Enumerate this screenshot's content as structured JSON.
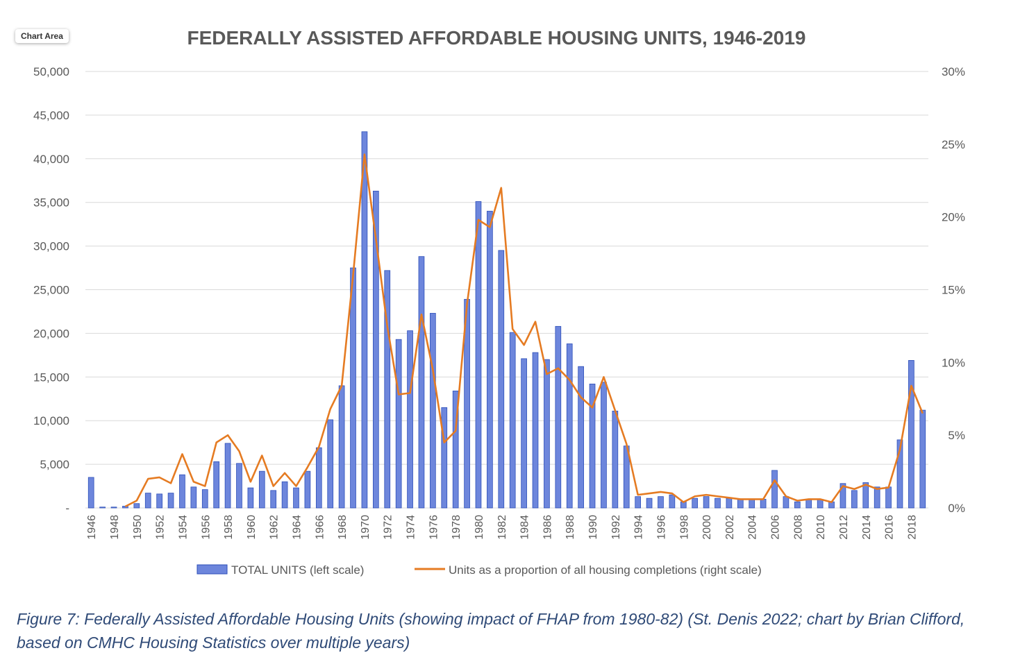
{
  "chart_area_label": "Chart Area",
  "caption": "Figure 7: Federally Assisted Affordable Housing Units (showing impact of FHAP from 1980-82) (St. Denis 2022; chart by Brian Clifford, based on CMHC Housing Statistics over multiple years)",
  "colors": {
    "bar_fill": "#6d86dc",
    "bar_stroke": "#2d4fb8",
    "line": "#e57b22",
    "grid": "#d9d9d9",
    "text": "#595959",
    "title": "#595959"
  },
  "chart_data": {
    "type": "bar",
    "title": "FEDERALLY ASSISTED AFFORDABLE HOUSING UNITS, 1946-2019",
    "xlabel": "",
    "ylabel": "",
    "ylim": [
      0,
      50000
    ],
    "y2lim": [
      0,
      30
    ],
    "grid": true,
    "legend_position": "bottom",
    "left_tick_labels": [
      "-",
      "5,000",
      "10,000",
      "15,000",
      "20,000",
      "25,000",
      "30,000",
      "35,000",
      "40,000",
      "45,000",
      "50,000"
    ],
    "right_tick_labels": [
      "0%",
      "5%",
      "10%",
      "15%",
      "20%",
      "25%",
      "30%"
    ],
    "x_tick_labels": [
      "1946",
      "1948",
      "1950",
      "1952",
      "1954",
      "1956",
      "1958",
      "1960",
      "1962",
      "1964",
      "1966",
      "1968",
      "1970",
      "1972",
      "1974",
      "1976",
      "1978",
      "1980",
      "1982",
      "1984",
      "1986",
      "1988",
      "1990",
      "1992",
      "1994",
      "1996",
      "1998",
      "2000",
      "2002",
      "2004",
      "2006",
      "2008",
      "2010",
      "2012",
      "2014",
      "2016",
      "2018"
    ],
    "categories": [
      1946,
      1947,
      1948,
      1949,
      1950,
      1951,
      1952,
      1953,
      1954,
      1955,
      1956,
      1957,
      1958,
      1959,
      1960,
      1961,
      1962,
      1963,
      1964,
      1965,
      1966,
      1967,
      1968,
      1969,
      1970,
      1971,
      1972,
      1973,
      1974,
      1975,
      1976,
      1977,
      1978,
      1979,
      1980,
      1981,
      1982,
      1983,
      1984,
      1985,
      1986,
      1987,
      1988,
      1989,
      1990,
      1991,
      1992,
      1993,
      1994,
      1995,
      1996,
      1997,
      1998,
      1999,
      2000,
      2001,
      2002,
      2003,
      2004,
      2005,
      2006,
      2007,
      2008,
      2009,
      2010,
      2011,
      2012,
      2013,
      2014,
      2015,
      2016,
      2017,
      2018,
      2019
    ],
    "series": [
      {
        "name": "TOTAL UNITS (left scale)",
        "type": "bar",
        "axis": "left",
        "values": [
          3500,
          100,
          100,
          200,
          500,
          1700,
          1600,
          1700,
          3800,
          2400,
          2100,
          5300,
          7400,
          5100,
          2300,
          4200,
          2000,
          3000,
          2300,
          4200,
          6900,
          10100,
          14000,
          27500,
          43100,
          36300,
          27200,
          19300,
          20300,
          28800,
          22300,
          11500,
          13400,
          23900,
          35100,
          34000,
          29500,
          20100,
          17100,
          17800,
          17000,
          20800,
          18800,
          16200,
          14200,
          14400,
          11100,
          7100,
          1300,
          1100,
          1300,
          1500,
          700,
          1100,
          1300,
          1100,
          1100,
          1000,
          1000,
          1000,
          4300,
          1300,
          700,
          1000,
          1000,
          700,
          2800,
          2000,
          2900,
          2400,
          2400,
          7800,
          16900,
          11200
        ]
      },
      {
        "name": "Units as a proportion of all housing completions (right scale)",
        "type": "line",
        "axis": "right",
        "values": [
          null,
          null,
          null,
          0.1,
          0.5,
          2.0,
          2.1,
          1.7,
          3.7,
          1.8,
          1.5,
          4.5,
          5.0,
          3.9,
          1.8,
          3.6,
          1.5,
          2.4,
          1.5,
          2.8,
          4.2,
          6.8,
          8.4,
          16.0,
          24.3,
          18.5,
          12.5,
          7.8,
          7.9,
          13.3,
          9.5,
          4.5,
          5.3,
          14.0,
          19.8,
          19.3,
          22.0,
          12.3,
          11.2,
          12.8,
          9.2,
          9.6,
          8.8,
          7.6,
          6.9,
          9.0,
          6.7,
          4.4,
          0.9,
          1.0,
          1.1,
          1.0,
          0.4,
          0.8,
          0.9,
          0.8,
          0.7,
          0.6,
          0.6,
          0.6,
          1.9,
          0.8,
          0.5,
          0.6,
          0.6,
          0.4,
          1.5,
          1.3,
          1.6,
          1.3,
          1.4,
          4.0,
          8.4,
          6.5
        ]
      }
    ]
  }
}
